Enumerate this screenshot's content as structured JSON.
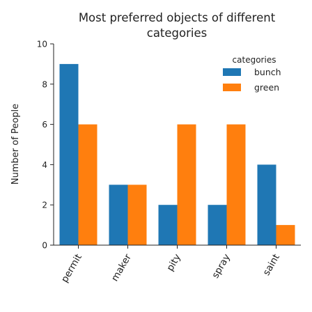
{
  "chart_data": {
    "type": "bar",
    "title": "Most preferred objects of different categories",
    "title_lines": [
      "Most preferred objects of different",
      "categories"
    ],
    "xlabel": "",
    "ylabel": "Number of People",
    "ylim": [
      0,
      10
    ],
    "yticks": [
      0,
      2,
      4,
      6,
      8,
      10
    ],
    "categories": [
      "permit",
      "maker",
      "pity",
      "spray",
      "saint"
    ],
    "series": [
      {
        "name": "bunch",
        "color": "#1f77b4",
        "values": [
          9,
          3,
          2,
          2,
          4
        ]
      },
      {
        "name": "green",
        "color": "#ff7f0e",
        "values": [
          6,
          3,
          6,
          6,
          1
        ]
      }
    ],
    "legend": {
      "title": "categories",
      "placement": "top-right"
    },
    "grid": false
  }
}
